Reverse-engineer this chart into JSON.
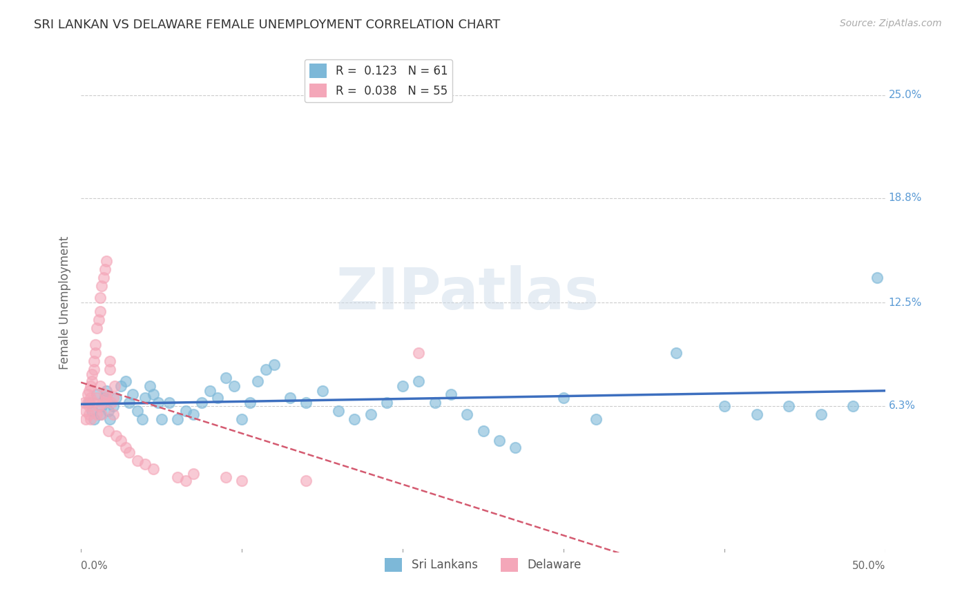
{
  "title": "SRI LANKAN VS DELAWARE FEMALE UNEMPLOYMENT CORRELATION CHART",
  "source": "Source: ZipAtlas.com",
  "ylabel": "Female Unemployment",
  "ytick_labels": [
    "25.0%",
    "18.8%",
    "12.5%",
    "6.3%"
  ],
  "ytick_values": [
    0.25,
    0.188,
    0.125,
    0.063
  ],
  "xlim": [
    0.0,
    0.5
  ],
  "ylim": [
    -0.025,
    0.275
  ],
  "legend_entries": [
    {
      "label": "R =  0.123   N = 61",
      "color": "#aec6e8"
    },
    {
      "label": "R =  0.038   N = 55",
      "color": "#f4a7b9"
    }
  ],
  "legend_bottom": [
    "Sri Lankans",
    "Delaware"
  ],
  "sri_lankans_color": "#7db8d8",
  "delaware_color": "#f4a7b9",
  "sri_lankans_line_color": "#3d6fbf",
  "delaware_line_color": "#d45a70",
  "watermark_text": "ZIPatlas",
  "sri_lankans_x": [
    0.005,
    0.007,
    0.008,
    0.01,
    0.012,
    0.013,
    0.015,
    0.016,
    0.017,
    0.018,
    0.02,
    0.022,
    0.025,
    0.028,
    0.03,
    0.032,
    0.035,
    0.038,
    0.04,
    0.043,
    0.045,
    0.048,
    0.05,
    0.055,
    0.06,
    0.065,
    0.07,
    0.075,
    0.08,
    0.085,
    0.09,
    0.095,
    0.1,
    0.105,
    0.11,
    0.115,
    0.12,
    0.13,
    0.14,
    0.15,
    0.16,
    0.17,
    0.18,
    0.19,
    0.2,
    0.21,
    0.22,
    0.23,
    0.24,
    0.25,
    0.26,
    0.27,
    0.3,
    0.32,
    0.37,
    0.4,
    0.42,
    0.44,
    0.46,
    0.48,
    0.495
  ],
  "sri_lankans_y": [
    0.065,
    0.06,
    0.055,
    0.07,
    0.058,
    0.063,
    0.068,
    0.072,
    0.06,
    0.055,
    0.063,
    0.068,
    0.075,
    0.078,
    0.065,
    0.07,
    0.06,
    0.055,
    0.068,
    0.075,
    0.07,
    0.065,
    0.055,
    0.065,
    0.055,
    0.06,
    0.058,
    0.065,
    0.072,
    0.068,
    0.08,
    0.075,
    0.055,
    0.065,
    0.078,
    0.085,
    0.088,
    0.068,
    0.065,
    0.072,
    0.06,
    0.055,
    0.058,
    0.065,
    0.075,
    0.078,
    0.065,
    0.07,
    0.058,
    0.048,
    0.042,
    0.038,
    0.068,
    0.055,
    0.095,
    0.063,
    0.058,
    0.063,
    0.058,
    0.063,
    0.14
  ],
  "delaware_x": [
    0.002,
    0.003,
    0.003,
    0.004,
    0.004,
    0.005,
    0.005,
    0.005,
    0.006,
    0.006,
    0.006,
    0.007,
    0.007,
    0.008,
    0.008,
    0.008,
    0.009,
    0.009,
    0.01,
    0.01,
    0.01,
    0.011,
    0.011,
    0.012,
    0.012,
    0.012,
    0.013,
    0.013,
    0.014,
    0.014,
    0.015,
    0.015,
    0.016,
    0.016,
    0.017,
    0.018,
    0.018,
    0.019,
    0.02,
    0.02,
    0.021,
    0.022,
    0.025,
    0.028,
    0.03,
    0.035,
    0.04,
    0.045,
    0.06,
    0.065,
    0.07,
    0.09,
    0.1,
    0.14,
    0.21
  ],
  "delaware_y": [
    0.065,
    0.06,
    0.055,
    0.07,
    0.065,
    0.058,
    0.063,
    0.072,
    0.068,
    0.075,
    0.055,
    0.078,
    0.082,
    0.085,
    0.065,
    0.09,
    0.095,
    0.1,
    0.058,
    0.068,
    0.11,
    0.063,
    0.115,
    0.12,
    0.075,
    0.128,
    0.058,
    0.135,
    0.065,
    0.14,
    0.07,
    0.145,
    0.068,
    0.15,
    0.048,
    0.085,
    0.09,
    0.065,
    0.058,
    0.068,
    0.075,
    0.045,
    0.042,
    0.038,
    0.035,
    0.03,
    0.028,
    0.025,
    0.02,
    0.018,
    0.022,
    0.02,
    0.018,
    0.018,
    0.095
  ]
}
